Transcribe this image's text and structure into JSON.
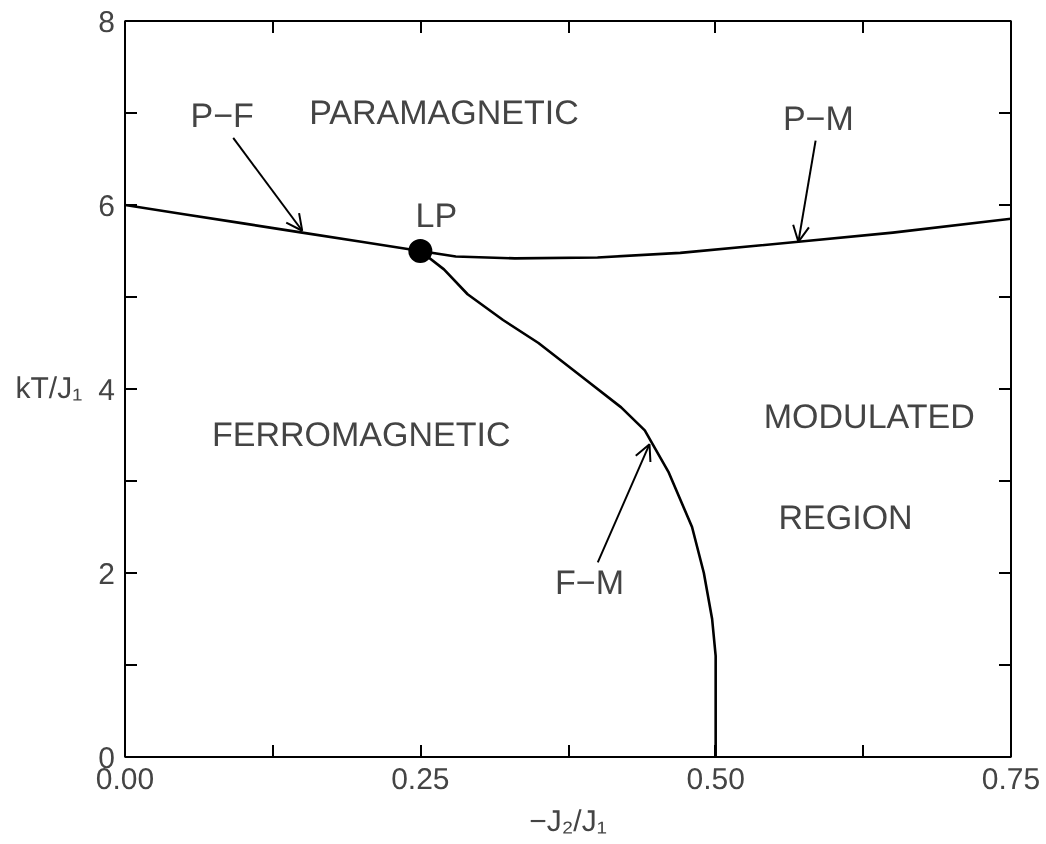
{
  "chart_data": {
    "type": "line",
    "xlabel": "−J₂/J₁",
    "ylabel": "kT/J₁",
    "xlim": [
      0,
      0.75
    ],
    "ylim": [
      0,
      8
    ],
    "xticks": [
      {
        "value": 0,
        "label": "0.00"
      },
      {
        "value": 0.125,
        "label": null
      },
      {
        "value": 0.25,
        "label": "0.25"
      },
      {
        "value": 0.375,
        "label": null
      },
      {
        "value": 0.5,
        "label": "0.50"
      },
      {
        "value": 0.625,
        "label": null
      },
      {
        "value": 0.75,
        "label": "0.75"
      }
    ],
    "yticks": [
      0,
      {
        "value": 1,
        "label": null
      },
      2,
      {
        "value": 3,
        "label": null
      },
      4,
      {
        "value": 5,
        "label": null
      },
      6,
      {
        "value": 7,
        "label": null
      },
      8
    ],
    "grid": false,
    "line_style": "solid",
    "series": [
      {
        "color": "#000000",
        "x": [
          0,
          0.05,
          0.1,
          0.15,
          0.2,
          0.25
        ],
        "values": [
          6.0,
          5.9,
          5.8,
          5.7,
          5.6,
          5.5
        ]
      },
      {
        "color": "#000000",
        "x": [
          0.25,
          0.28,
          0.33,
          0.4,
          0.47,
          0.57,
          0.65,
          0.75
        ],
        "values": [
          5.5,
          5.44,
          5.42,
          5.43,
          5.48,
          5.6,
          5.7,
          5.85
        ]
      },
      {
        "color": "#000000",
        "x": [
          0.25,
          0.27,
          0.29,
          0.32,
          0.35,
          0.39,
          0.42,
          0.44,
          0.46,
          0.48,
          0.49,
          0.497,
          0.5,
          0.5
        ],
        "values": [
          5.5,
          5.3,
          5.03,
          4.75,
          4.5,
          4.1,
          3.8,
          3.55,
          3.1,
          2.5,
          2.0,
          1.5,
          1.1,
          0
        ]
      },
      {
        "type": "scatter",
        "name": "LP",
        "color": "#000000",
        "marker": "circle",
        "x": [
          0.25
        ],
        "values": [
          5.5
        ]
      }
    ],
    "annotations": [
      "PARAMAGNETIC",
      "FERROMAGNETIC",
      "MODULATED",
      "REGION",
      {
        "text": "P−F",
        "x": 0.15,
        "y": 5.72
      },
      {
        "text": "P−M",
        "x": 0.57,
        "y": 5.6
      },
      {
        "text": "F−M",
        "x": 0.444,
        "y": 3.4
      }
    ]
  }
}
